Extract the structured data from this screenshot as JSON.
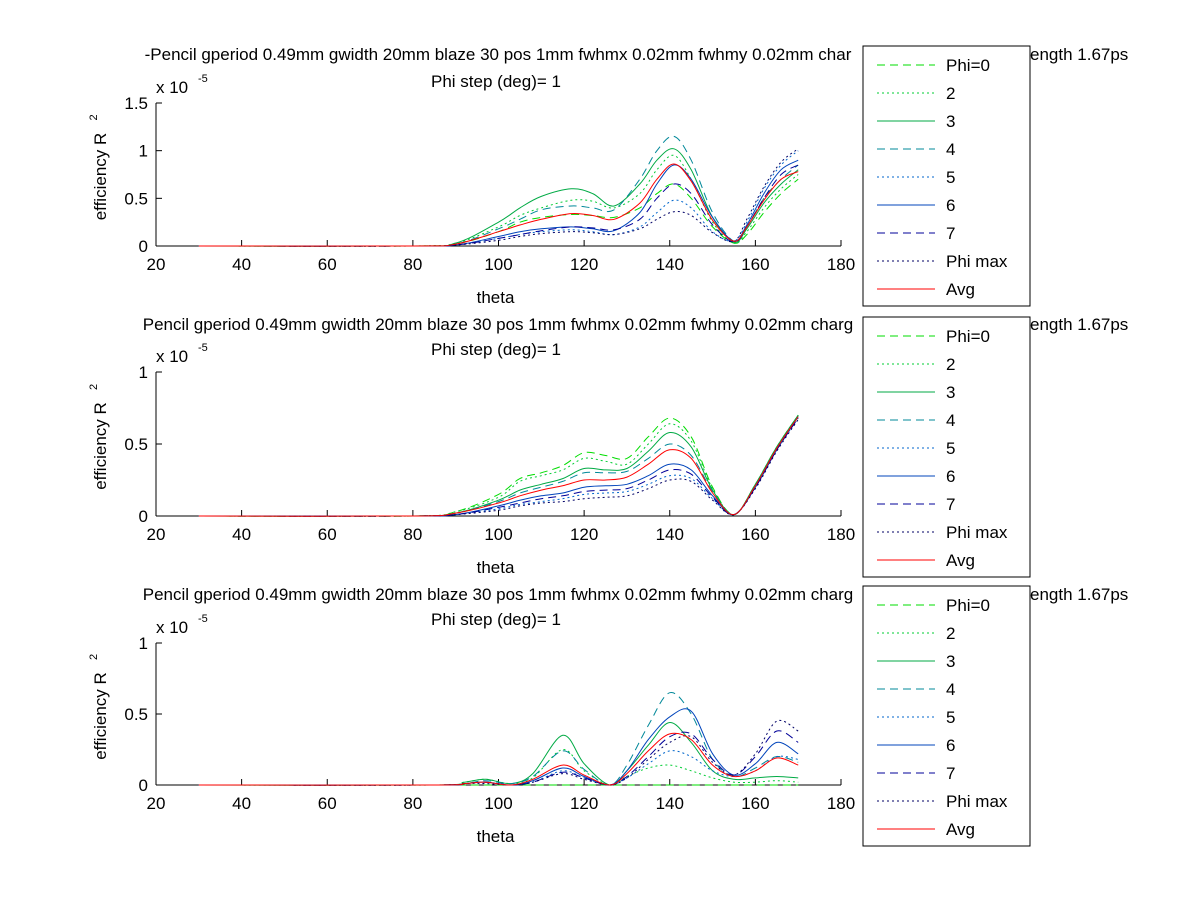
{
  "figure": {
    "panels": [
      {
        "title_line1": "-Pencil gperiod 0.49mm gwidth 20mm blaze 30 pos 1mm fwhmx 0.02mm fwhmy 0.02mm char",
        "title_line1_tail": "ength 1.67ps",
        "title_line2": "Phi step (deg)= 1"
      },
      {
        "title_line1": "Pencil gperiod 0.49mm gwidth 20mm blaze 30 pos 1mm fwhmx 0.02mm fwhmy 0.02mm charg",
        "title_line1_tail": "ength 1.67ps",
        "title_line2": "Phi step (deg)= 1"
      },
      {
        "title_line1": "Pencil gperiod 0.49mm gwidth 20mm blaze 30 pos 1mm fwhmx 0.02mm fwhmy 0.02mm charg",
        "title_line1_tail": "ength 1.67ps",
        "title_line2": "Phi step (deg)= 1"
      }
    ]
  },
  "chart_data": [
    {
      "type": "line",
      "xlabel": "theta",
      "ylabel": "efficiency R",
      "ylabel_sup": "2",
      "y_exponent": "x 10",
      "y_exponent_sup": "-5",
      "xlim": [
        20,
        180
      ],
      "ylim": [
        0,
        1.5
      ],
      "xticks": [
        "20",
        "40",
        "60",
        "80",
        "100",
        "120",
        "140",
        "160",
        "180"
      ],
      "yticks": [
        "0",
        "0.5",
        "1",
        "1.5"
      ],
      "grid": false,
      "legend_position": "right-outside",
      "x": [
        30,
        80,
        90,
        100,
        105,
        110,
        117,
        122,
        127,
        133,
        137,
        141,
        145,
        150,
        155,
        158,
        162,
        166,
        170
      ],
      "series": [
        {
          "name": "Phi=0",
          "color": "#00dd00",
          "dash": "8,5",
          "values": [
            0,
            0,
            0.02,
            0.15,
            0.25,
            0.3,
            0.33,
            0.32,
            0.3,
            0.4,
            0.55,
            0.65,
            0.5,
            0.2,
            0.03,
            0.12,
            0.35,
            0.55,
            0.7
          ]
        },
        {
          "name": "2",
          "color": "#00cc33",
          "dash": "2,3",
          "values": [
            0,
            0,
            0.03,
            0.2,
            0.32,
            0.4,
            0.48,
            0.47,
            0.4,
            0.55,
            0.8,
            0.95,
            0.7,
            0.25,
            0.03,
            0.15,
            0.4,
            0.6,
            0.75
          ]
        },
        {
          "name": "3",
          "color": "#00aa44",
          "dash": "",
          "values": [
            0,
            0,
            0.03,
            0.25,
            0.4,
            0.52,
            0.6,
            0.55,
            0.42,
            0.65,
            0.9,
            1.02,
            0.8,
            0.3,
            0.04,
            0.18,
            0.45,
            0.65,
            0.8
          ]
        },
        {
          "name": "4",
          "color": "#008899",
          "dash": "8,5",
          "values": [
            0,
            0,
            0.02,
            0.18,
            0.28,
            0.38,
            0.42,
            0.4,
            0.38,
            0.7,
            1.0,
            1.15,
            0.9,
            0.35,
            0.05,
            0.2,
            0.5,
            0.7,
            0.85
          ]
        },
        {
          "name": "5",
          "color": "#0066cc",
          "dash": "2,3",
          "values": [
            0,
            0,
            0.01,
            0.08,
            0.12,
            0.15,
            0.17,
            0.15,
            0.12,
            0.2,
            0.35,
            0.48,
            0.4,
            0.15,
            0.05,
            0.25,
            0.6,
            0.85,
            1.0
          ]
        },
        {
          "name": "6",
          "color": "#0044bb",
          "dash": "",
          "values": [
            0,
            0,
            0.01,
            0.1,
            0.15,
            0.18,
            0.2,
            0.18,
            0.16,
            0.35,
            0.65,
            0.85,
            0.7,
            0.3,
            0.05,
            0.22,
            0.55,
            0.8,
            0.9
          ]
        },
        {
          "name": "7",
          "color": "#000099",
          "dash": "8,5",
          "values": [
            0,
            0,
            0.01,
            0.08,
            0.12,
            0.16,
            0.2,
            0.19,
            0.17,
            0.28,
            0.5,
            0.65,
            0.55,
            0.22,
            0.04,
            0.2,
            0.5,
            0.75,
            0.85
          ]
        },
        {
          "name": "Phi max",
          "color": "#000066",
          "dash": "2,3",
          "values": [
            0,
            0,
            0.01,
            0.06,
            0.1,
            0.13,
            0.15,
            0.14,
            0.12,
            0.18,
            0.28,
            0.36,
            0.32,
            0.14,
            0.05,
            0.28,
            0.62,
            0.88,
            1.02
          ]
        },
        {
          "name": "Avg",
          "color": "#ff0000",
          "dash": "",
          "values": [
            0,
            0,
            0.02,
            0.15,
            0.22,
            0.28,
            0.34,
            0.32,
            0.28,
            0.45,
            0.7,
            0.86,
            0.68,
            0.27,
            0.05,
            0.2,
            0.48,
            0.7,
            0.78
          ]
        }
      ]
    },
    {
      "type": "line",
      "xlabel": "theta",
      "ylabel": "efficiency R",
      "ylabel_sup": "2",
      "y_exponent": "x 10",
      "y_exponent_sup": "-5",
      "xlim": [
        20,
        180
      ],
      "ylim": [
        0,
        1
      ],
      "xticks": [
        "20",
        "40",
        "60",
        "80",
        "100",
        "120",
        "140",
        "160",
        "180"
      ],
      "yticks": [
        "0",
        "0.5",
        "1"
      ],
      "grid": false,
      "legend_position": "right-outside",
      "x": [
        30,
        80,
        90,
        100,
        105,
        110,
        115,
        120,
        125,
        130,
        135,
        140,
        145,
        150,
        155,
        160,
        165,
        170
      ],
      "series": [
        {
          "name": "Phi=0",
          "color": "#00dd00",
          "dash": "8,5",
          "values": [
            0,
            0,
            0.03,
            0.15,
            0.26,
            0.3,
            0.35,
            0.44,
            0.42,
            0.4,
            0.55,
            0.68,
            0.55,
            0.2,
            0.01,
            0.22,
            0.48,
            0.7
          ]
        },
        {
          "name": "2",
          "color": "#00cc33",
          "dash": "2,3",
          "values": [
            0,
            0,
            0.03,
            0.13,
            0.24,
            0.28,
            0.32,
            0.4,
            0.38,
            0.36,
            0.5,
            0.64,
            0.52,
            0.19,
            0.01,
            0.22,
            0.48,
            0.7
          ]
        },
        {
          "name": "3",
          "color": "#00aa44",
          "dash": "",
          "values": [
            0,
            0,
            0.02,
            0.11,
            0.18,
            0.22,
            0.26,
            0.33,
            0.32,
            0.33,
            0.45,
            0.58,
            0.48,
            0.18,
            0.01,
            0.22,
            0.48,
            0.7
          ]
        },
        {
          "name": "4",
          "color": "#008899",
          "dash": "8,5",
          "values": [
            0,
            0,
            0.02,
            0.1,
            0.16,
            0.2,
            0.24,
            0.3,
            0.3,
            0.31,
            0.4,
            0.5,
            0.42,
            0.17,
            0.01,
            0.21,
            0.47,
            0.69
          ]
        },
        {
          "name": "5",
          "color": "#0066cc",
          "dash": "2,3",
          "values": [
            0,
            0,
            0.01,
            0.05,
            0.08,
            0.1,
            0.12,
            0.15,
            0.16,
            0.17,
            0.22,
            0.28,
            0.26,
            0.12,
            0.01,
            0.2,
            0.46,
            0.68
          ]
        },
        {
          "name": "6",
          "color": "#0044bb",
          "dash": "",
          "values": [
            0,
            0,
            0.01,
            0.07,
            0.11,
            0.14,
            0.16,
            0.2,
            0.21,
            0.22,
            0.28,
            0.36,
            0.32,
            0.14,
            0.01,
            0.2,
            0.46,
            0.69
          ]
        },
        {
          "name": "7",
          "color": "#000099",
          "dash": "8,5",
          "values": [
            0,
            0,
            0.01,
            0.06,
            0.09,
            0.12,
            0.14,
            0.17,
            0.18,
            0.19,
            0.25,
            0.32,
            0.29,
            0.13,
            0.01,
            0.2,
            0.46,
            0.68
          ]
        },
        {
          "name": "Phi max",
          "color": "#000066",
          "dash": "2,3",
          "values": [
            0,
            0,
            0.01,
            0.04,
            0.07,
            0.09,
            0.1,
            0.12,
            0.13,
            0.14,
            0.19,
            0.25,
            0.24,
            0.11,
            0.01,
            0.19,
            0.45,
            0.67
          ]
        },
        {
          "name": "Avg",
          "color": "#ff0000",
          "dash": "",
          "values": [
            0,
            0,
            0.02,
            0.09,
            0.14,
            0.18,
            0.21,
            0.25,
            0.25,
            0.27,
            0.36,
            0.46,
            0.4,
            0.16,
            0.01,
            0.21,
            0.47,
            0.69
          ]
        }
      ]
    },
    {
      "type": "line",
      "xlabel": "theta",
      "ylabel": "efficiency R",
      "ylabel_sup": "2",
      "y_exponent": "x 10",
      "y_exponent_sup": "-5",
      "xlim": [
        20,
        180
      ],
      "ylim": [
        0,
        1
      ],
      "xticks": [
        "20",
        "40",
        "60",
        "80",
        "100",
        "120",
        "140",
        "160",
        "180"
      ],
      "yticks": [
        "0",
        "0.5",
        "1"
      ],
      "grid": false,
      "legend_position": "right-outside",
      "x": [
        30,
        85,
        92,
        97,
        103,
        108,
        115,
        120,
        126,
        130,
        135,
        140,
        145,
        150,
        155,
        160,
        165,
        170
      ],
      "series": [
        {
          "name": "Phi=0",
          "color": "#00dd00",
          "dash": "8,5",
          "values": [
            0,
            0,
            0,
            0,
            0,
            0,
            0,
            0,
            0,
            0,
            0,
            0,
            0,
            0,
            0,
            0,
            0,
            0
          ]
        },
        {
          "name": "2",
          "color": "#00cc33",
          "dash": "2,3",
          "values": [
            0,
            0,
            0.02,
            0.04,
            0.01,
            0.05,
            0.25,
            0.1,
            0.0,
            0.06,
            0.12,
            0.14,
            0.1,
            0.05,
            0.02,
            0.02,
            0.03,
            0.02
          ]
        },
        {
          "name": "3",
          "color": "#00aa44",
          "dash": "",
          "values": [
            0,
            0,
            0.02,
            0.04,
            0.01,
            0.08,
            0.35,
            0.15,
            0.0,
            0.1,
            0.28,
            0.44,
            0.3,
            0.1,
            0.04,
            0.05,
            0.06,
            0.05
          ]
        },
        {
          "name": "4",
          "color": "#008899",
          "dash": "8,5",
          "values": [
            0,
            0,
            0.01,
            0.03,
            0.01,
            0.06,
            0.24,
            0.11,
            0.0,
            0.14,
            0.42,
            0.65,
            0.5,
            0.18,
            0.06,
            0.12,
            0.2,
            0.16
          ]
        },
        {
          "name": "5",
          "color": "#0066cc",
          "dash": "2,3",
          "values": [
            0,
            0,
            0.01,
            0.02,
            0.0,
            0.02,
            0.1,
            0.05,
            0.0,
            0.05,
            0.15,
            0.24,
            0.2,
            0.1,
            0.06,
            0.1,
            0.2,
            0.18
          ]
        },
        {
          "name": "6",
          "color": "#0044bb",
          "dash": "",
          "values": [
            0,
            0,
            0.01,
            0.02,
            0.0,
            0.03,
            0.12,
            0.06,
            0.0,
            0.1,
            0.32,
            0.48,
            0.52,
            0.22,
            0.07,
            0.15,
            0.3,
            0.22
          ]
        },
        {
          "name": "7",
          "color": "#000099",
          "dash": "8,5",
          "values": [
            0,
            0,
            0.01,
            0.02,
            0.0,
            0.02,
            0.09,
            0.05,
            0.0,
            0.06,
            0.2,
            0.34,
            0.36,
            0.18,
            0.07,
            0.2,
            0.38,
            0.3
          ]
        },
        {
          "name": "Phi max",
          "color": "#000066",
          "dash": "2,3",
          "values": [
            0,
            0,
            0.01,
            0.01,
            0.0,
            0.02,
            0.08,
            0.04,
            0.0,
            0.05,
            0.18,
            0.3,
            0.34,
            0.16,
            0.07,
            0.22,
            0.45,
            0.38
          ]
        },
        {
          "name": "Avg",
          "color": "#ff0000",
          "dash": "",
          "values": [
            0,
            0,
            0.01,
            0.02,
            0.0,
            0.04,
            0.14,
            0.07,
            0.0,
            0.08,
            0.24,
            0.36,
            0.32,
            0.14,
            0.06,
            0.1,
            0.19,
            0.14
          ]
        }
      ]
    }
  ]
}
